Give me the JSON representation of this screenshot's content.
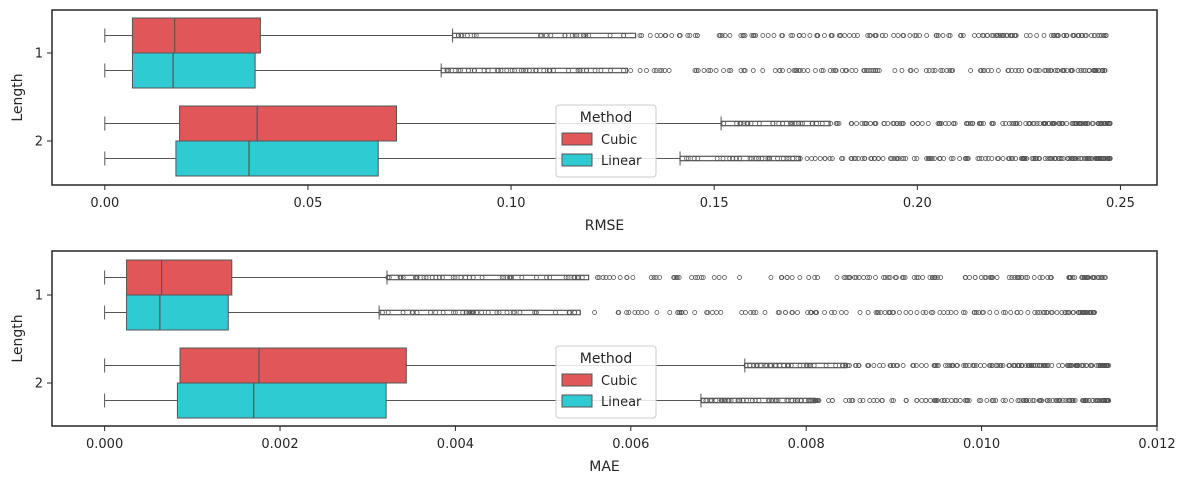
{
  "colors": {
    "cubic": "#e15759",
    "linear": "#2ecbd3",
    "edge": "#555555",
    "frame": "#262626"
  },
  "chart_data": [
    {
      "type": "boxplot",
      "orientation": "horizontal",
      "xlabel": "RMSE",
      "ylabel": "Length",
      "xlim": [
        -0.013,
        0.259
      ],
      "xticks": [
        0.0,
        0.05,
        0.1,
        0.15,
        0.2,
        0.25
      ],
      "xtick_labels": [
        "0.00",
        "0.05",
        "0.10",
        "0.15",
        "0.20",
        "0.25"
      ],
      "categories": [
        "1",
        "2"
      ],
      "legend": {
        "title": "Method",
        "entries": [
          "Cubic",
          "Linear"
        ],
        "placement": "center-bottom"
      },
      "series": [
        {
          "name": "Cubic",
          "boxes": [
            {
              "category": "1",
              "whisker_low": 0.0,
              "q1": 0.0068,
              "median": 0.0172,
              "q3": 0.0383,
              "whisker_high": 0.0856,
              "outlier_range": [
                0.0856,
                0.2465
              ]
            },
            {
              "category": "2",
              "whisker_low": 0.0,
              "q1": 0.0184,
              "median": 0.0375,
              "q3": 0.0718,
              "whisker_high": 0.1517,
              "outlier_range": [
                0.1517,
                0.2475
              ]
            }
          ]
        },
        {
          "name": "Linear",
          "boxes": [
            {
              "category": "1",
              "whisker_low": 0.0,
              "q1": 0.0068,
              "median": 0.0168,
              "q3": 0.037,
              "whisker_high": 0.0828,
              "outlier_range": [
                0.0828,
                0.2465
              ]
            },
            {
              "category": "2",
              "whisker_low": 0.0,
              "q1": 0.0175,
              "median": 0.0355,
              "q3": 0.0673,
              "whisker_high": 0.1416,
              "outlier_range": [
                0.1416,
                0.2475
              ]
            }
          ]
        }
      ]
    },
    {
      "type": "boxplot",
      "orientation": "horizontal",
      "xlabel": "MAE",
      "ylabel": "Length",
      "xlim": [
        -0.0006,
        0.012
      ],
      "xticks": [
        0.0,
        0.002,
        0.004,
        0.006,
        0.008,
        0.01,
        0.012
      ],
      "xtick_labels": [
        "0.000",
        "0.002",
        "0.004",
        "0.006",
        "0.008",
        "0.010",
        "0.012"
      ],
      "categories": [
        "1",
        "2"
      ],
      "legend": {
        "title": "Method",
        "entries": [
          "Cubic",
          "Linear"
        ],
        "placement": "center-bottom"
      },
      "series": [
        {
          "name": "Cubic",
          "boxes": [
            {
              "category": "1",
              "whisker_low": 0.0,
              "q1": 0.00025,
              "median": 0.00065,
              "q3": 0.00145,
              "whisker_high": 0.00322,
              "outlier_range": [
                0.00322,
                0.01143
              ]
            },
            {
              "category": "2",
              "whisker_low": 0.0,
              "q1": 0.00086,
              "median": 0.00176,
              "q3": 0.00344,
              "whisker_high": 0.0073,
              "outlier_range": [
                0.0073,
                0.01145
              ]
            }
          ]
        },
        {
          "name": "Linear",
          "boxes": [
            {
              "category": "1",
              "whisker_low": 0.0,
              "q1": 0.00025,
              "median": 0.00063,
              "q3": 0.00141,
              "whisker_high": 0.00313,
              "outlier_range": [
                0.00313,
                0.01132
              ]
            },
            {
              "category": "2",
              "whisker_low": 0.0,
              "q1": 0.00083,
              "median": 0.0017,
              "q3": 0.00321,
              "whisker_high": 0.0068,
              "outlier_range": [
                0.0068,
                0.01145
              ]
            }
          ]
        }
      ]
    }
  ]
}
